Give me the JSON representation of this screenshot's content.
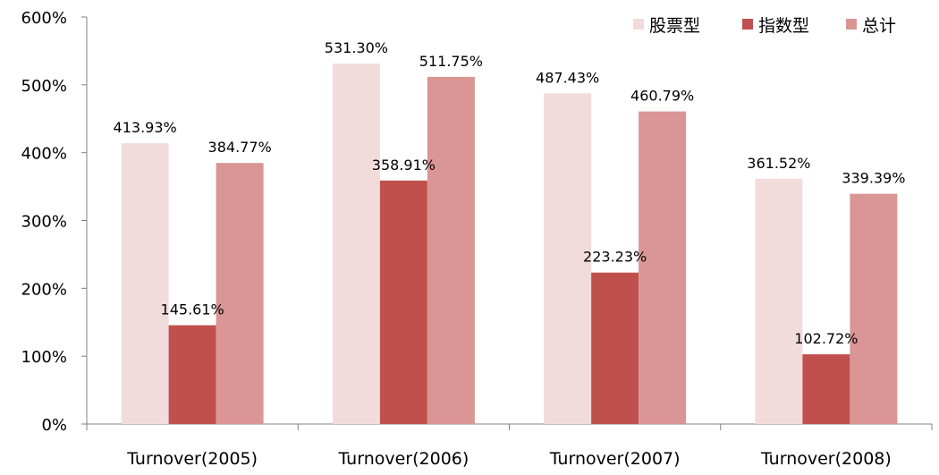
{
  "chart_data": {
    "type": "bar",
    "categories": [
      "Turnover(2005)",
      "Turnover(2006)",
      "Turnover(2007)",
      "Turnover(2008)"
    ],
    "series": [
      {
        "name": "股票型",
        "color": "#f2dcdb",
        "values": [
          413.93,
          531.3,
          487.43,
          361.52
        ],
        "labels": [
          "413.93%",
          "531.30%",
          "487.43%",
          "361.52%"
        ]
      },
      {
        "name": "指数型",
        "color": "#c0504d",
        "values": [
          145.61,
          358.91,
          223.23,
          102.72
        ],
        "labels": [
          "145.61%",
          "358.91%",
          "223.23%",
          "102.72%"
        ]
      },
      {
        "name": "总计",
        "color": "#d99694",
        "values": [
          384.77,
          511.75,
          460.79,
          339.39
        ],
        "labels": [
          "384.77%",
          "511.75%",
          "460.79%",
          "339.39%"
        ]
      }
    ],
    "ylim": [
      0,
      600
    ],
    "yticks": [
      0,
      100,
      200,
      300,
      400,
      500,
      600
    ],
    "ytick_labels": [
      "0%",
      "100%",
      "200%",
      "300%",
      "400%",
      "500%",
      "600%"
    ],
    "legend_position": "top-right",
    "grid": false
  }
}
